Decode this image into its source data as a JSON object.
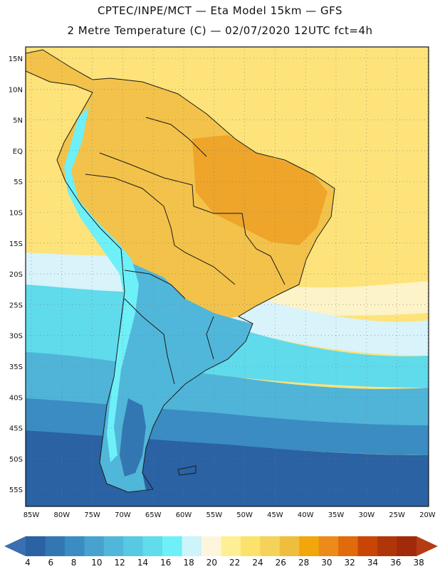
{
  "title": {
    "line1": "CPTEC/INPE/MCT —  Eta Model 15km — GFS",
    "line2": "2 Metre Temperature (C) — 02/07/2020 12UTC fct=4h"
  },
  "axes": {
    "lat_labels": [
      "15N",
      "10N",
      "5N",
      "EQ",
      "5S",
      "10S",
      "15S",
      "20S",
      "25S",
      "30S",
      "35S",
      "40S",
      "45S",
      "50S",
      "55S"
    ],
    "lon_labels": [
      "85W",
      "80W",
      "75W",
      "70W",
      "65W",
      "60W",
      "55W",
      "50W",
      "45W",
      "40W",
      "35W",
      "30W",
      "25W",
      "20W"
    ]
  },
  "colorbar": {
    "labels": [
      "4",
      "6",
      "8",
      "10",
      "12",
      "14",
      "16",
      "18",
      "20",
      "22",
      "24",
      "26",
      "28",
      "30",
      "32",
      "34",
      "36",
      "38"
    ],
    "colors": [
      "#2a62a4",
      "#3377b2",
      "#3a8cc2",
      "#47a2cf",
      "#51b7da",
      "#57c9e2",
      "#60dced",
      "#6ef0f8",
      "#cdf4fb",
      "#fdf6dc",
      "#fdf094",
      "#fbe26c",
      "#f5d25a",
      "#f0be3e",
      "#f2a60c",
      "#ec8a1a",
      "#e06a0c",
      "#c84505",
      "#b0360a",
      "#a02a0a"
    ],
    "low_color": "#3a6fb0",
    "high_color": "#b53b12"
  },
  "map": {
    "colors": {
      "ocean_warm": "#fde37a",
      "ocean_pale": "#fdf3c8",
      "ocean_cool": "#d8f3fa",
      "ocean_cyan": "#5fdbec",
      "ocean_mid": "#4fb4d8",
      "ocean_deep": "#3a8cc2",
      "ocean_cold": "#2a62a4",
      "land_hot": "#eea52a",
      "land_warm": "#f3c24a",
      "andes": "#6ef0f8",
      "land_south": "#51b7da",
      "land_cold": "#3377b2",
      "border": "#1a1a1a"
    }
  }
}
